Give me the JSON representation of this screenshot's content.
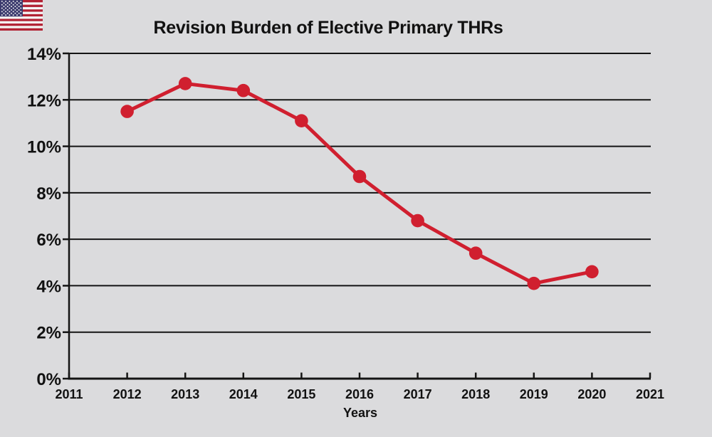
{
  "page": {
    "title": "Revision Burden of Elective Primary THRs"
  },
  "colors": {
    "background": "#dbdbdd",
    "line": "#d01f2f",
    "axis": "#141414",
    "text": "#111111",
    "flag_red": "#b22234",
    "flag_blue": "#3c3b6e",
    "flag_white": "#f5f5f5"
  },
  "icons": {
    "flag": "us-flag-icon"
  },
  "chart_data": {
    "type": "line",
    "title": "Revision Burden of Elective Primary THRs",
    "xlabel": "Years",
    "ylabel": "",
    "x": [
      2012,
      2013,
      2014,
      2015,
      2016,
      2017,
      2018,
      2019,
      2020
    ],
    "values": [
      11.5,
      12.7,
      12.4,
      11.1,
      8.7,
      6.8,
      5.4,
      4.1,
      4.6
    ],
    "xlim": [
      2011,
      2021
    ],
    "ylim": [
      0,
      14
    ],
    "y_tick_step": 2,
    "y_tick_labels": [
      "0%",
      "2%",
      "4%",
      "6%",
      "8%",
      "10%",
      "12%",
      "14%"
    ],
    "x_tick_labels": [
      "2011",
      "2012",
      "2013",
      "2014",
      "2015",
      "2016",
      "2017",
      "2018",
      "2019",
      "2020",
      "2021"
    ],
    "grid": "horizontal",
    "legend": "none",
    "marker": "circle"
  }
}
